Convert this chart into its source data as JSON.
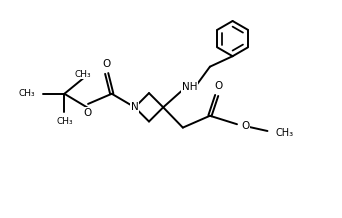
{
  "bg_color": "#ffffff",
  "line_color": "#000000",
  "line_width": 1.4,
  "font_size": 7.5,
  "fig_width": 3.42,
  "fig_height": 2.18,
  "dpi": 100,
  "xlim": [
    0,
    10
  ],
  "ylim": [
    0,
    6.4
  ]
}
